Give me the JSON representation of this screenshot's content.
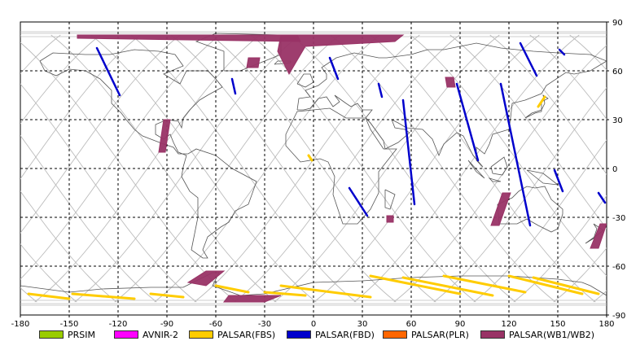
{
  "chart_data": {
    "type": "map",
    "x_ticks": [
      "-180",
      "-150",
      "-120",
      "-90",
      "-60",
      "-30",
      "0",
      "30",
      "60",
      "90",
      "120",
      "150",
      "180"
    ],
    "y_ticks": [
      "90",
      "60",
      "30",
      "0",
      "-30",
      "-60",
      "-90"
    ],
    "xlim": [
      -180,
      180
    ],
    "ylim": [
      -90,
      90
    ],
    "grid": true,
    "legend": [
      {
        "label": "PRSIM",
        "color": "#99cc00"
      },
      {
        "label": "AVNIR-2",
        "color": "#ff00ff"
      },
      {
        "label": "PALSAR(FBS)",
        "color": "#ffcc00"
      },
      {
        "label": "PALSAR(FBD)",
        "color": "#0000cc"
      },
      {
        "label": "PALSAR(PLR)",
        "color": "#ff6600"
      },
      {
        "label": "PALSAR(WB1/WB2)",
        "color": "#993366"
      }
    ],
    "swaths": [
      {
        "mode": "PALSAR(WB1/WB2)",
        "points": [
          [
            -145,
            82
          ],
          [
            -10,
            82
          ],
          [
            -8,
            78
          ],
          [
            -145,
            80
          ]
        ]
      },
      {
        "mode": "PALSAR(WB1/WB2)",
        "points": [
          [
            -20,
            82
          ],
          [
            55,
            82
          ],
          [
            50,
            78
          ],
          [
            -5,
            75
          ],
          [
            -15,
            58
          ],
          [
            -22,
            72
          ]
        ]
      },
      {
        "mode": "PALSAR(WB1/WB2)",
        "points": [
          [
            -40,
            68
          ],
          [
            -33,
            68
          ],
          [
            -34,
            62
          ],
          [
            -41,
            62
          ]
        ]
      },
      {
        "mode": "PALSAR(WB1/WB2)",
        "points": [
          [
            -92,
            30
          ],
          [
            -88,
            30
          ],
          [
            -91,
            10
          ],
          [
            -95,
            10
          ]
        ]
      },
      {
        "mode": "PALSAR(WB1/WB2)",
        "points": [
          [
            81,
            56
          ],
          [
            86,
            56
          ],
          [
            87,
            50
          ],
          [
            82,
            50
          ]
        ]
      },
      {
        "mode": "PALSAR(WB1/WB2)",
        "points": [
          [
            116,
            -15
          ],
          [
            121,
            -15
          ],
          [
            114,
            -35
          ],
          [
            109,
            -35
          ]
        ]
      },
      {
        "mode": "PALSAR(WB1/WB2)",
        "points": [
          [
            176,
            -34
          ],
          [
            180,
            -34
          ],
          [
            175,
            -49
          ],
          [
            170,
            -49
          ]
        ]
      },
      {
        "mode": "PALSAR(WB1/WB2)",
        "points": [
          [
            -66,
            -63
          ],
          [
            -55,
            -63
          ],
          [
            -66,
            -72
          ],
          [
            -77,
            -70
          ]
        ]
      },
      {
        "mode": "PALSAR(WB1/WB2)",
        "points": [
          [
            -52,
            -78
          ],
          [
            -20,
            -78
          ],
          [
            -30,
            -82
          ],
          [
            -55,
            -82
          ]
        ]
      },
      {
        "mode": "PALSAR(WB1/WB2)",
        "points": [
          [
            45,
            -29
          ],
          [
            49,
            -29
          ],
          [
            49,
            -33
          ],
          [
            45,
            -33
          ]
        ]
      },
      {
        "mode": "PALSAR(FBD)",
        "points": [
          [
            -133,
            74
          ],
          [
            -119,
            45
          ]
        ]
      },
      {
        "mode": "PALSAR(FBD)",
        "points": [
          [
            -50,
            55
          ],
          [
            -48,
            46
          ]
        ]
      },
      {
        "mode": "PALSAR(FBD)",
        "points": [
          [
            10,
            68
          ],
          [
            15,
            55
          ]
        ]
      },
      {
        "mode": "PALSAR(FBD)",
        "points": [
          [
            40,
            52
          ],
          [
            42,
            44
          ]
        ]
      },
      {
        "mode": "PALSAR(FBD)",
        "points": [
          [
            22,
            -12
          ],
          [
            33,
            -29
          ]
        ]
      },
      {
        "mode": "PALSAR(FBD)",
        "points": [
          [
            55,
            42
          ],
          [
            62,
            -22
          ]
        ]
      },
      {
        "mode": "PALSAR(FBD)",
        "points": [
          [
            88,
            52
          ],
          [
            101,
            5
          ]
        ]
      },
      {
        "mode": "PALSAR(FBD)",
        "points": [
          [
            115,
            52
          ],
          [
            133,
            -35
          ]
        ]
      },
      {
        "mode": "PALSAR(FBD)",
        "points": [
          [
            127,
            77
          ],
          [
            137,
            57
          ]
        ]
      },
      {
        "mode": "PALSAR(FBD)",
        "points": [
          [
            148,
            -1
          ],
          [
            153,
            -14
          ]
        ]
      },
      {
        "mode": "PALSAR(FBD)",
        "points": [
          [
            175,
            -15
          ],
          [
            179,
            -21
          ]
        ]
      },
      {
        "mode": "PALSAR(FBD)",
        "points": [
          [
            151,
            73
          ],
          [
            154,
            70
          ]
        ]
      },
      {
        "mode": "PALSAR(FBS)",
        "points": [
          [
            -175,
            -77
          ],
          [
            -150,
            -80
          ]
        ]
      },
      {
        "mode": "PALSAR(FBS)",
        "points": [
          [
            -148,
            -77
          ],
          [
            -110,
            -80
          ]
        ]
      },
      {
        "mode": "PALSAR(FBS)",
        "points": [
          [
            -100,
            -77
          ],
          [
            -80,
            -79
          ]
        ]
      },
      {
        "mode": "PALSAR(FBS)",
        "points": [
          [
            -60,
            -72
          ],
          [
            -40,
            -76
          ]
        ]
      },
      {
        "mode": "PALSAR(FBS)",
        "points": [
          [
            -30,
            -76
          ],
          [
            -5,
            -78
          ]
        ]
      },
      {
        "mode": "PALSAR(FBS)",
        "points": [
          [
            -20,
            -72
          ],
          [
            35,
            -79
          ]
        ]
      },
      {
        "mode": "PALSAR(FBS)",
        "points": [
          [
            35,
            -66
          ],
          [
            90,
            -77
          ]
        ]
      },
      {
        "mode": "PALSAR(FBS)",
        "points": [
          [
            55,
            -67
          ],
          [
            110,
            -78
          ]
        ]
      },
      {
        "mode": "PALSAR(FBS)",
        "points": [
          [
            80,
            -66
          ],
          [
            130,
            -76
          ]
        ]
      },
      {
        "mode": "PALSAR(FBS)",
        "points": [
          [
            120,
            -66
          ],
          [
            165,
            -77
          ]
        ]
      },
      {
        "mode": "PALSAR(FBS)",
        "points": [
          [
            135,
            -67
          ],
          [
            175,
            -77
          ]
        ]
      },
      {
        "mode": "PALSAR(FBS)",
        "points": [
          [
            138,
            38
          ],
          [
            142,
            44
          ]
        ]
      },
      {
        "mode": "PALSAR(FBS)",
        "points": [
          [
            -3,
            8
          ],
          [
            -1,
            5
          ]
        ]
      }
    ]
  }
}
